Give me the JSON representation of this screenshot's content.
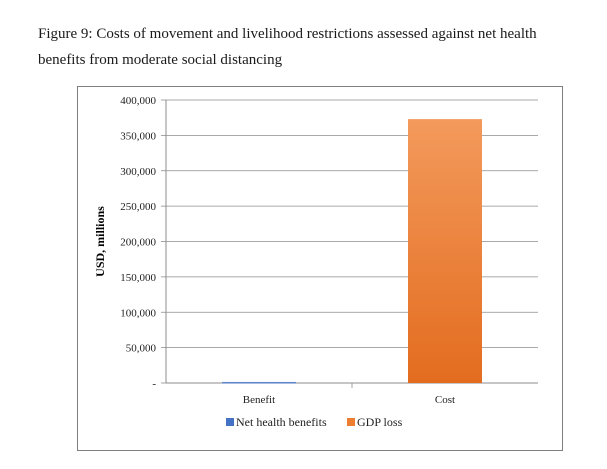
{
  "caption": "Figure 9: Costs of movement and livelihood restrictions assessed against net health benefits from moderate social distancing",
  "chart_data": {
    "type": "bar",
    "categories": [
      "Benefit",
      "Cost"
    ],
    "series": [
      {
        "name": "Net health benefits",
        "values": [
          1500,
          0
        ],
        "color": "#4472c4"
      },
      {
        "name": "GDP loss",
        "values": [
          0,
          373000
        ],
        "color": "#ed7d31"
      }
    ],
    "ylabel": "USD, millions",
    "xlabel": "",
    "ylim": [
      0,
      400000
    ],
    "yticks": [
      0,
      50000,
      100000,
      150000,
      200000,
      250000,
      300000,
      350000,
      400000
    ],
    "ytick_labels": [
      "-",
      "50,000",
      "100,000",
      "150,000",
      "200,000",
      "250,000",
      "300,000",
      "350,000",
      "400,000"
    ],
    "grid": true,
    "legend_position": "bottom"
  }
}
